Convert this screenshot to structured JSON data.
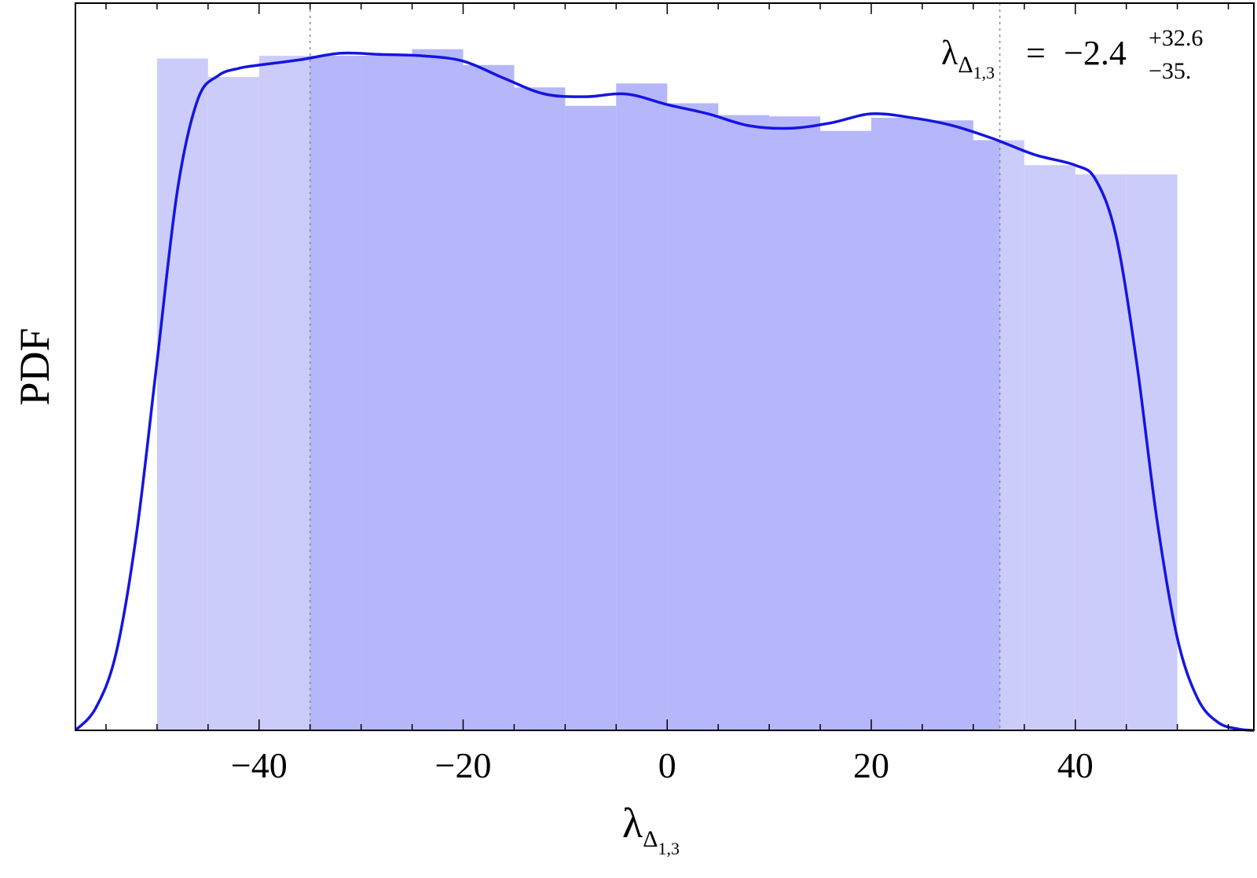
{
  "chart_data": {
    "type": "histogram",
    "title": "",
    "xlabel": {
      "symbol": "λ",
      "subscript": "Δ",
      "subsubscript": "1,3"
    },
    "ylabel": "PDF",
    "xlim": [
      -58,
      57.5
    ],
    "ylim": [
      0,
      0.01104
    ],
    "y_ticks_labeled": false,
    "grid": false,
    "x_ticks": [
      -40,
      -20,
      0,
      20,
      40
    ],
    "x_tick_labels": [
      "−40",
      "−20",
      "0",
      "20",
      "40"
    ],
    "bin_edges": [
      -50,
      -45,
      -40,
      -35,
      -30,
      -25,
      -20,
      -15,
      -10,
      -5,
      0,
      5,
      10,
      15,
      20,
      25,
      30,
      35,
      40,
      45,
      50
    ],
    "bin_values": [
      0.0102,
      0.00992,
      0.01024,
      0.01024,
      0.01024,
      0.01034,
      0.0101,
      0.00976,
      0.00948,
      0.00982,
      0.00952,
      0.00934,
      0.00932,
      0.0091,
      0.0093,
      0.00926,
      0.00896,
      0.00858,
      0.00844,
      0.00844
    ],
    "credible_interval": {
      "lower": -35.0,
      "upper": 32.6,
      "median": -2.4
    },
    "density_curve": {
      "x": [
        -58,
        -56,
        -54,
        -52,
        -50,
        -48,
        -46,
        -44,
        -42,
        -40,
        -36,
        -32,
        -28,
        -24,
        -20,
        -16,
        -12,
        -8,
        -4,
        0,
        4,
        8,
        12,
        16,
        20,
        24,
        28,
        32,
        36,
        40,
        42,
        44,
        46,
        48,
        50,
        52,
        54,
        56,
        57.5
      ],
      "y": [
        0.0,
        0.00034,
        0.00118,
        0.003,
        0.0056,
        0.0082,
        0.00958,
        0.00994,
        0.01005,
        0.0101,
        0.01018,
        0.01028,
        0.01026,
        0.01024,
        0.01016,
        0.0099,
        0.00966,
        0.00962,
        0.00966,
        0.0095,
        0.00936,
        0.00918,
        0.00914,
        0.00922,
        0.00936,
        0.0093,
        0.00918,
        0.00898,
        0.00874,
        0.00858,
        0.00836,
        0.0075,
        0.0056,
        0.0032,
        0.0014,
        0.00048,
        0.00012,
        2e-05,
        0.0
      ]
    },
    "annotation": {
      "symbol": "λ",
      "subscript": "Δ",
      "subsubscript": "1,3",
      "equals": "=",
      "value": "−2.4",
      "upper_err": "+32.6",
      "lower_err": "−35."
    },
    "colors": {
      "bar_fill": "#ccccfa",
      "ci_fill": "#b5b7fa",
      "curve": "#1515e0",
      "ci_line": "#888888",
      "frame": "#000000"
    }
  }
}
